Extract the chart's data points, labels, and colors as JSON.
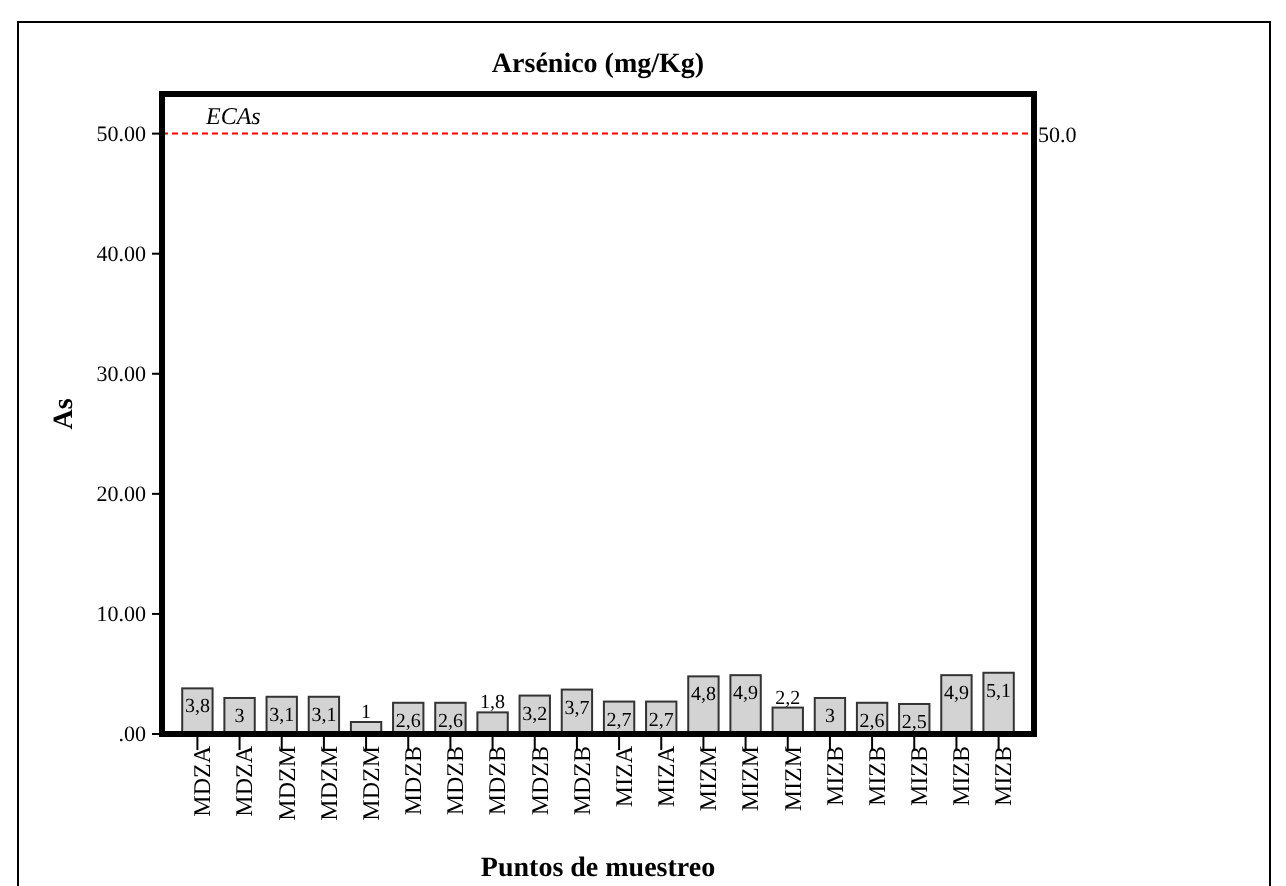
{
  "chart_data": {
    "type": "bar",
    "title": "Arsénico (mg/Kg)",
    "xlabel": "Puntos de muestreo",
    "ylabel": "As",
    "categories": [
      "MDZA",
      "MDZA",
      "MDZM",
      "MDZM",
      "MDZM",
      "MDZB",
      "MDZB",
      "MDZB",
      "MDZB",
      "MDZB",
      "MIZA",
      "MIZA",
      "MIZM",
      "MIZM",
      "MIZM",
      "MIZB",
      "MIZB",
      "MIZB",
      "MIZB",
      "MIZB"
    ],
    "values": [
      3.8,
      3,
      3.1,
      3.1,
      1,
      2.6,
      2.6,
      1.8,
      3.2,
      3.7,
      2.7,
      2.7,
      4.8,
      4.9,
      2.2,
      3,
      2.6,
      2.5,
      4.9,
      5.1
    ],
    "value_labels": [
      "3,8",
      "3",
      "3,1",
      "3,1",
      "1",
      "2,6",
      "2,6",
      "1,8",
      "3,2",
      "3,7",
      "2,7",
      "2,7",
      "4,8",
      "4,9",
      "2,2",
      "3",
      "2,6",
      "2,5",
      "4,9",
      "5,1"
    ],
    "color": "#d3d3d3",
    "ylim": [
      0,
      53.3
    ],
    "yticks": [
      {
        "value": 0,
        "label": ".00"
      },
      {
        "value": 10,
        "label": "10.00"
      },
      {
        "value": 20,
        "label": "20.00"
      },
      {
        "value": 30,
        "label": "30.00"
      },
      {
        "value": 40,
        "label": "40.00"
      },
      {
        "value": 50,
        "label": "50.00"
      }
    ],
    "ref_lines": [
      {
        "axis": "y",
        "value": 50,
        "label": "ECAs",
        "color": "#ff0000",
        "line_style": "dashed"
      }
    ],
    "annotations": [
      "50.0"
    ],
    "grid": false
  }
}
